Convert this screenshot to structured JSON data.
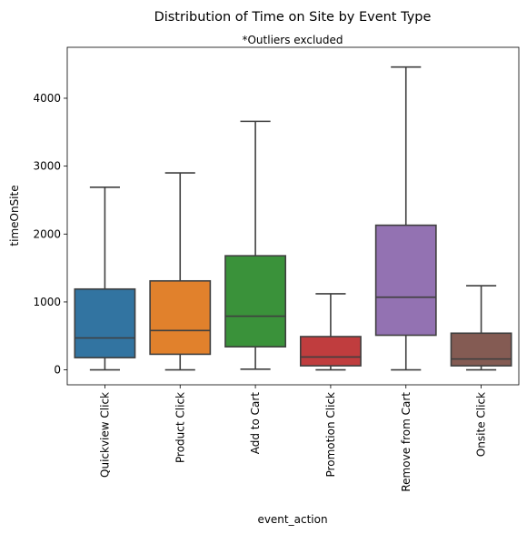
{
  "chart_data": {
    "type": "box",
    "title": "Distribution of Time on Site by Event Type",
    "subtitle": "*Outliers excluded",
    "xlabel": "event_action",
    "ylabel": "timeOnSite",
    "ylim": [
      -220,
      4750
    ],
    "yticks": [
      0,
      1000,
      2000,
      3000,
      4000
    ],
    "grid": false,
    "boxes": [
      {
        "category": "Quickview Click",
        "whislo": 0,
        "q1": 180,
        "median": 470,
        "q3": 1190,
        "whishi": 2690,
        "color": "#3274a1"
      },
      {
        "category": "Product Click",
        "whislo": 0,
        "q1": 230,
        "median": 580,
        "q3": 1310,
        "whishi": 2900,
        "color": "#e1812c"
      },
      {
        "category": "Add to Cart",
        "whislo": 10,
        "q1": 340,
        "median": 790,
        "q3": 1680,
        "whishi": 3660,
        "color": "#3a923a"
      },
      {
        "category": "Promotion Click",
        "whislo": 0,
        "q1": 60,
        "median": 190,
        "q3": 490,
        "whishi": 1120,
        "color": "#c03d3e"
      },
      {
        "category": "Remove from Cart",
        "whislo": 0,
        "q1": 510,
        "median": 1070,
        "q3": 2130,
        "whishi": 4460,
        "color": "#9372b2"
      },
      {
        "category": "Onsite Click",
        "whislo": 0,
        "q1": 60,
        "median": 160,
        "q3": 540,
        "whishi": 1240,
        "color": "#845b53"
      }
    ]
  }
}
